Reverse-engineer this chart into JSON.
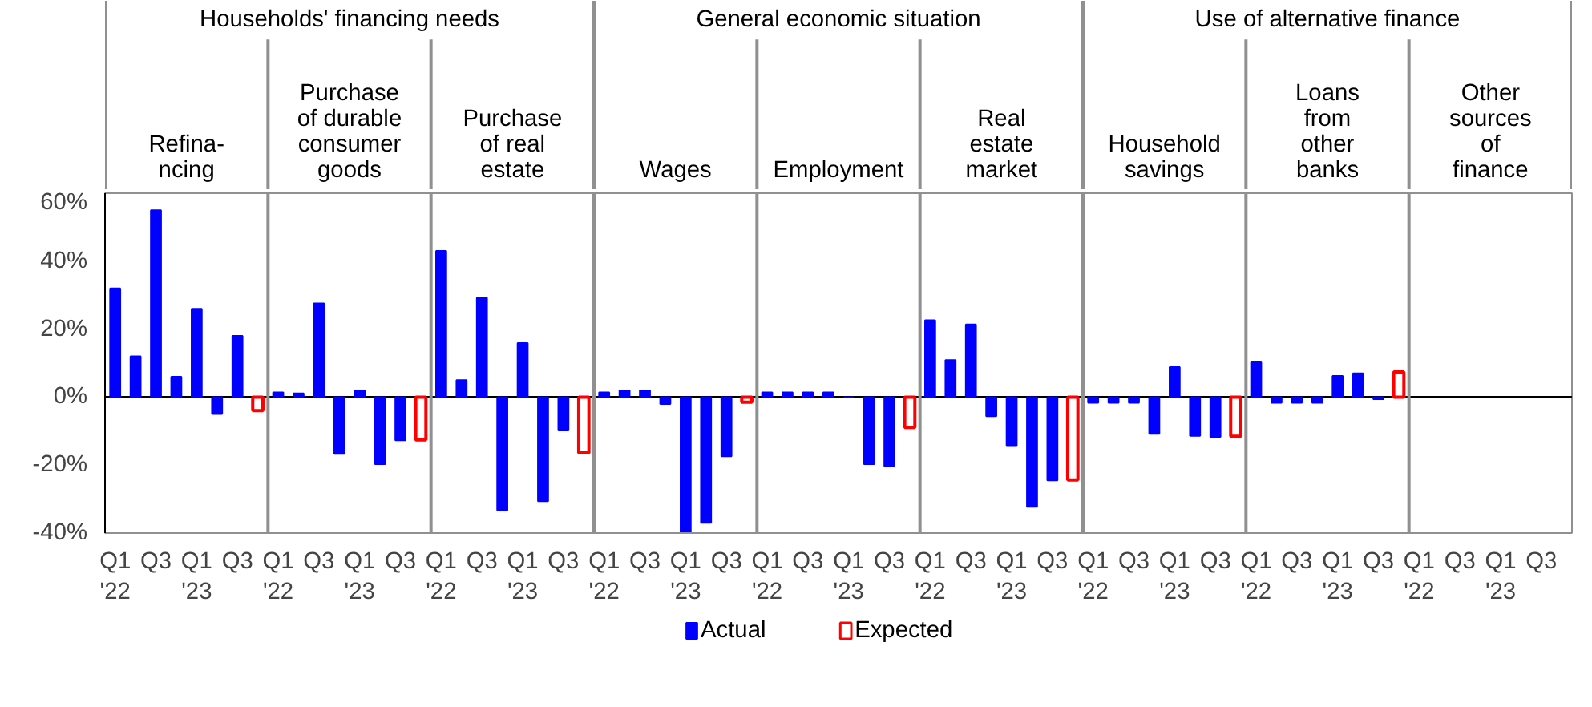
{
  "chart_data": {
    "type": "bar",
    "categories": [
      "Q1\n'22",
      null,
      "Q3",
      null,
      "Q1\n'23",
      null,
      "Q3",
      null,
      "Q1\n'22",
      null,
      "Q3",
      null,
      "Q1\n'23",
      null,
      "Q3",
      null,
      "Q1\n'22",
      null,
      "Q3",
      null,
      "Q1\n'23",
      null,
      "Q3",
      null,
      "Q1\n'22",
      null,
      "Q3",
      null,
      "Q1\n'23",
      null,
      "Q3",
      null,
      "Q1\n'22",
      null,
      "Q3",
      null,
      "Q1\n'23",
      null,
      "Q3",
      null,
      "Q1\n'22",
      null,
      "Q3",
      null,
      "Q1\n'23",
      null,
      "Q3",
      null,
      "Q1\n'22",
      null,
      "Q3",
      null,
      "Q1\n'23",
      null,
      "Q3",
      null,
      "Q1\n'22",
      null,
      "Q3",
      null,
      "Q1\n'23",
      null,
      "Q3",
      null,
      "Q1\n'22",
      null,
      "Q3",
      null,
      "Q1\n'23",
      null,
      "Q3",
      null
    ],
    "series": [
      {
        "name": "Actual",
        "color": "#0000ff",
        "values": [
          32,
          12,
          55,
          6,
          26,
          -5,
          18,
          null,
          1.4,
          1.1,
          27.6,
          -16.7,
          2,
          -19.7,
          -12.7,
          null,
          43,
          5,
          29.2,
          -33.3,
          15.9,
          -30.6,
          -9.8,
          null,
          1.4,
          2,
          2,
          -2,
          -40,
          -37,
          -17.4,
          null,
          1.4,
          1.4,
          1.4,
          1.4,
          0,
          -19.7,
          -20.3,
          null,
          22.6,
          10.9,
          21.4,
          -5.6,
          -14.4,
          -32.3,
          -24.5,
          null,
          -1.7,
          -1.7,
          -1.7,
          -10.8,
          8.8,
          -11.4,
          -11.7,
          null,
          10.5,
          -1.7,
          -1.7,
          -1.7,
          6.2,
          7,
          -0.6,
          null,
          null,
          null,
          null,
          null,
          null,
          null,
          null,
          null
        ]
      },
      {
        "name": "Expected",
        "color": "#ff0000",
        "values": [
          null,
          null,
          null,
          null,
          null,
          null,
          null,
          -4,
          null,
          null,
          null,
          null,
          null,
          null,
          null,
          -12.6,
          null,
          null,
          null,
          null,
          null,
          null,
          null,
          -16.4,
          null,
          null,
          null,
          null,
          null,
          null,
          null,
          -1.5,
          null,
          null,
          null,
          null,
          null,
          null,
          null,
          -8.9,
          null,
          null,
          null,
          null,
          null,
          null,
          null,
          -24.4,
          null,
          null,
          null,
          null,
          null,
          null,
          null,
          -11.5,
          null,
          null,
          null,
          null,
          null,
          null,
          null,
          7.4,
          null,
          null,
          null,
          null,
          null,
          null,
          null,
          null
        ]
      }
    ],
    "ylim": [
      -40,
      60
    ],
    "yticks": [
      {
        "value": -40,
        "label": "-40%"
      },
      {
        "value": -20,
        "label": "-20%"
      },
      {
        "value": 0,
        "label": "0%"
      },
      {
        "value": 20,
        "label": "20%"
      },
      {
        "value": 40,
        "label": "40%"
      },
      {
        "value": 60,
        "label": "60%"
      }
    ],
    "ref_lines": [
      {
        "axis": "y",
        "value": 0,
        "color": "#000000"
      }
    ],
    "annotations": [
      "Households' financing needs",
      "General economic situation",
      "Use of alternative finance",
      "Refina-\nncing",
      "Purchase\nof durable\nconsumer\ngoods",
      "Purchase\nof real\nestate",
      "Wages",
      "Employment",
      "Real\nestate\nmarket",
      "Household\nsavings",
      "Loans\nfrom\nother\nbanks",
      "Other\nsources\nof\nfinance"
    ],
    "grid": false,
    "legend": "bottom"
  }
}
